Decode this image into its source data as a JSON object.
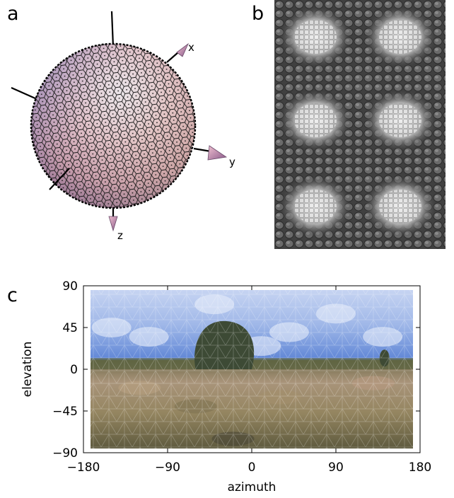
{
  "panels": {
    "a": {
      "letter": "a",
      "axes": [
        "x",
        "y",
        "z"
      ]
    },
    "b": {
      "letter": "b"
    },
    "c": {
      "letter": "c"
    }
  },
  "chart_data": {
    "type": "heatmap",
    "xlabel": "azimuth",
    "ylabel": "elevation",
    "xlim": [
      -180,
      180
    ],
    "ylim": [
      -90,
      90
    ],
    "xticks": [
      -180,
      -90,
      0,
      90,
      180
    ],
    "yticks": [
      90,
      45,
      0,
      -45,
      -90
    ],
    "xtick_labels": [
      "−180",
      "−90",
      "0",
      "90",
      "180"
    ],
    "ytick_labels": [
      "90",
      "45",
      "0",
      "−45",
      "−90"
    ],
    "regions": [
      {
        "label": "sky",
        "elevation": [
          10,
          90
        ],
        "color": "#a4bce6"
      },
      {
        "label": "ground",
        "elevation": [
          -90,
          10
        ],
        "color": "#8d7f5f"
      },
      {
        "label": "tree",
        "azimuth": [
          -60,
          0
        ],
        "elevation": [
          0,
          52
        ],
        "color": "#3d4a35"
      }
    ]
  }
}
